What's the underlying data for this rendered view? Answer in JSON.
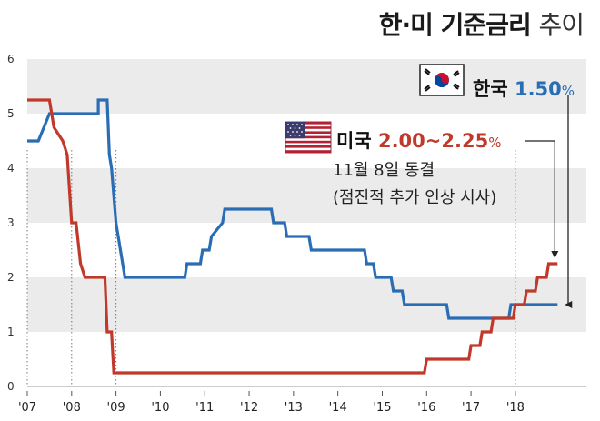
{
  "title": {
    "main": "한·미 기준금리",
    "sub": "추이"
  },
  "labels": {
    "korea": {
      "name": "한국",
      "value": "1.50",
      "unit": "%"
    },
    "usa": {
      "name": "미국",
      "value": "2.00~2.25",
      "unit": "%"
    },
    "note_line1": "11월 8일 동결",
    "note_line2": "(점진적 추가 인상 시사)"
  },
  "colors": {
    "korea": "#2a6db5",
    "usa": "#c0392b",
    "band": "#ebebeb"
  },
  "chart_data": {
    "type": "line",
    "title": "한·미 기준금리 추이",
    "xlabel": "",
    "ylabel": "",
    "ylim": [
      0,
      6
    ],
    "xlim": [
      2007,
      2019.6
    ],
    "yticks": [
      "0",
      "1",
      "2",
      "3",
      "4",
      "5",
      "6"
    ],
    "xticks": [
      {
        "label": "'07",
        "x": 2007
      },
      {
        "label": "'08",
        "x": 2008
      },
      {
        "label": "'09",
        "x": 2009
      },
      {
        "label": "'10",
        "x": 2010
      },
      {
        "label": "'11",
        "x": 2011
      },
      {
        "label": "'12",
        "x": 2012
      },
      {
        "label": "'13",
        "x": 2013
      },
      {
        "label": "'14",
        "x": 2014
      },
      {
        "label": "'15",
        "x": 2015
      },
      {
        "label": "'16",
        "x": 2016
      },
      {
        "label": "'17",
        "x": 2017
      },
      {
        "label": "'18",
        "x": 2018
      }
    ],
    "series": [
      {
        "name": "한국",
        "points": [
          [
            2007.0,
            4.5
          ],
          [
            2007.25,
            4.5
          ],
          [
            2007.5,
            5.0
          ],
          [
            2008.6,
            5.0
          ],
          [
            2008.6,
            5.25
          ],
          [
            2008.8,
            5.25
          ],
          [
            2008.85,
            4.25
          ],
          [
            2008.9,
            4.0
          ],
          [
            2009.0,
            3.0
          ],
          [
            2009.1,
            2.5
          ],
          [
            2009.2,
            2.0
          ],
          [
            2010.55,
            2.0
          ],
          [
            2010.6,
            2.25
          ],
          [
            2010.9,
            2.25
          ],
          [
            2010.95,
            2.5
          ],
          [
            2011.1,
            2.5
          ],
          [
            2011.15,
            2.75
          ],
          [
            2011.4,
            3.0
          ],
          [
            2011.45,
            3.25
          ],
          [
            2012.5,
            3.25
          ],
          [
            2012.55,
            3.0
          ],
          [
            2012.8,
            3.0
          ],
          [
            2012.85,
            2.75
          ],
          [
            2013.35,
            2.75
          ],
          [
            2013.4,
            2.5
          ],
          [
            2014.6,
            2.5
          ],
          [
            2014.65,
            2.25
          ],
          [
            2014.8,
            2.25
          ],
          [
            2014.85,
            2.0
          ],
          [
            2015.2,
            2.0
          ],
          [
            2015.25,
            1.75
          ],
          [
            2015.45,
            1.75
          ],
          [
            2015.5,
            1.5
          ],
          [
            2016.45,
            1.5
          ],
          [
            2016.5,
            1.25
          ],
          [
            2017.85,
            1.25
          ],
          [
            2017.9,
            1.5
          ],
          [
            2018.95,
            1.5
          ]
        ]
      },
      {
        "name": "미국",
        "points": [
          [
            2007.0,
            5.25
          ],
          [
            2007.5,
            5.25
          ],
          [
            2007.6,
            4.75
          ],
          [
            2007.8,
            4.5
          ],
          [
            2007.9,
            4.25
          ],
          [
            2008.0,
            3.0
          ],
          [
            2008.1,
            3.0
          ],
          [
            2008.2,
            2.25
          ],
          [
            2008.3,
            2.0
          ],
          [
            2008.75,
            2.0
          ],
          [
            2008.8,
            1.0
          ],
          [
            2008.9,
            1.0
          ],
          [
            2008.95,
            0.25
          ],
          [
            2015.95,
            0.25
          ],
          [
            2016.0,
            0.5
          ],
          [
            2016.95,
            0.5
          ],
          [
            2017.0,
            0.75
          ],
          [
            2017.2,
            0.75
          ],
          [
            2017.25,
            1.0
          ],
          [
            2017.45,
            1.0
          ],
          [
            2017.5,
            1.25
          ],
          [
            2017.95,
            1.25
          ],
          [
            2018.0,
            1.5
          ],
          [
            2018.2,
            1.5
          ],
          [
            2018.25,
            1.75
          ],
          [
            2018.45,
            1.75
          ],
          [
            2018.5,
            2.0
          ],
          [
            2018.7,
            2.0
          ],
          [
            2018.75,
            2.25
          ],
          [
            2018.95,
            2.25
          ]
        ]
      }
    ]
  }
}
